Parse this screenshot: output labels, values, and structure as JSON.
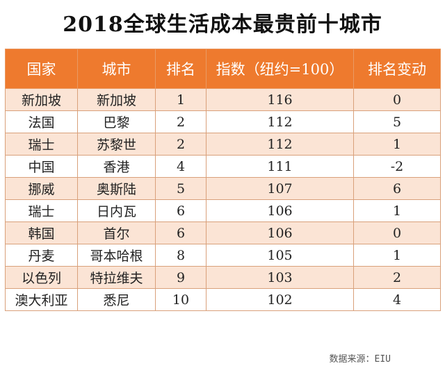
{
  "title": "2018全球生活成本最贵前十城市",
  "table": {
    "headers": [
      "国家",
      "城市",
      "排名",
      "指数（纽约=100）",
      "排名变动"
    ],
    "rows": [
      [
        "新加坡",
        "新加坡",
        "1",
        "116",
        "0"
      ],
      [
        "法国",
        "巴黎",
        "2",
        "112",
        "5"
      ],
      [
        "瑞士",
        "苏黎世",
        "2",
        "112",
        "1"
      ],
      [
        "中国",
        "香港",
        "4",
        "111",
        "-2"
      ],
      [
        "挪威",
        "奥斯陆",
        "5",
        "107",
        "6"
      ],
      [
        "瑞士",
        "日内瓦",
        "6",
        "106",
        "1"
      ],
      [
        "韩国",
        "首尔",
        "6",
        "106",
        "0"
      ],
      [
        "丹麦",
        "哥本哈根",
        "8",
        "105",
        "1"
      ],
      [
        "以色列",
        "特拉维夫",
        "9",
        "103",
        "2"
      ],
      [
        "澳大利亚",
        "悉尼",
        "10",
        "102",
        "4"
      ]
    ]
  },
  "source": "数据来源：EIU",
  "colors": {
    "header_bg": "#ee7a2e",
    "stripe_bg": "#fbe4d5"
  }
}
